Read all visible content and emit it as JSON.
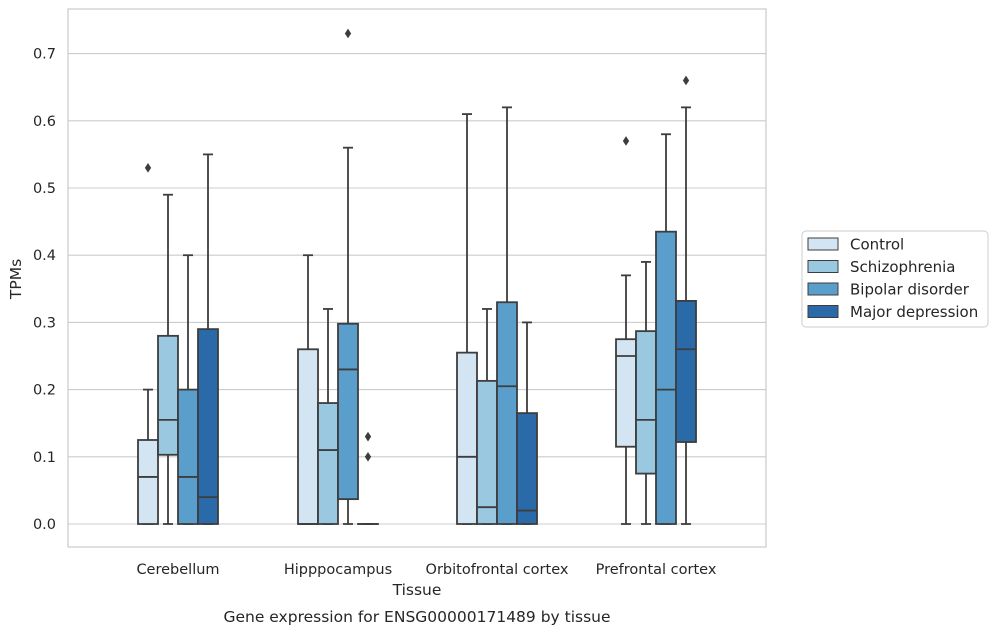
{
  "chart_data": {
    "type": "box",
    "xlabel": "Tissue",
    "ylabel": "TPMs",
    "caption": "Gene expression for ENSG00000171489 by tissue",
    "ylim": [
      -0.035,
      0.77
    ],
    "yticks": [
      0.0,
      0.1,
      0.2,
      0.3,
      0.4,
      0.5,
      0.6,
      0.7
    ],
    "ytick_labels": [
      "0.0",
      "0.1",
      "0.2",
      "0.3",
      "0.4",
      "0.5",
      "0.6",
      "0.7"
    ],
    "grid": "horizontal",
    "legend_position": "right",
    "categories": [
      "Cerebellum",
      "Hipppocampus",
      "Orbitofrontal cortex",
      "Prefrontal cortex"
    ],
    "series": [
      {
        "name": "Control",
        "color": "#d3e4f3",
        "boxes": [
          {
            "whisker_low": 0.0,
            "q1": 0.0,
            "median": 0.07,
            "q3": 0.125,
            "whisker_high": 0.2,
            "outliers": [
              0.53
            ]
          },
          {
            "whisker_low": 0.0,
            "q1": 0.0,
            "median": 0.0,
            "q3": 0.26,
            "whisker_high": 0.4,
            "outliers": []
          },
          {
            "whisker_low": 0.0,
            "q1": 0.0,
            "median": 0.1,
            "q3": 0.255,
            "whisker_high": 0.61,
            "outliers": []
          },
          {
            "whisker_low": 0.0,
            "q1": 0.115,
            "median": 0.25,
            "q3": 0.275,
            "whisker_high": 0.37,
            "outliers": [
              0.57
            ]
          }
        ]
      },
      {
        "name": "Schizophrenia",
        "color": "#9ac8e0",
        "boxes": [
          {
            "whisker_low": 0.0,
            "q1": 0.103,
            "median": 0.155,
            "q3": 0.28,
            "whisker_high": 0.49,
            "outliers": []
          },
          {
            "whisker_low": 0.0,
            "q1": 0.0,
            "median": 0.11,
            "q3": 0.18,
            "whisker_high": 0.32,
            "outliers": []
          },
          {
            "whisker_low": 0.0,
            "q1": 0.0,
            "median": 0.025,
            "q3": 0.213,
            "whisker_high": 0.32,
            "outliers": []
          },
          {
            "whisker_low": 0.0,
            "q1": 0.075,
            "median": 0.155,
            "q3": 0.287,
            "whisker_high": 0.39,
            "outliers": []
          }
        ]
      },
      {
        "name": "Bipolar disorder",
        "color": "#5a9fcc",
        "boxes": [
          {
            "whisker_low": 0.0,
            "q1": 0.0,
            "median": 0.07,
            "q3": 0.2,
            "whisker_high": 0.4,
            "outliers": []
          },
          {
            "whisker_low": 0.0,
            "q1": 0.037,
            "median": 0.23,
            "q3": 0.298,
            "whisker_high": 0.56,
            "outliers": [
              0.73
            ]
          },
          {
            "whisker_low": 0.0,
            "q1": 0.0,
            "median": 0.205,
            "q3": 0.33,
            "whisker_high": 0.62,
            "outliers": []
          },
          {
            "whisker_low": 0.0,
            "q1": 0.0,
            "median": 0.2,
            "q3": 0.435,
            "whisker_high": 0.58,
            "outliers": []
          }
        ]
      },
      {
        "name": "Major depression",
        "color": "#2b6aa8",
        "boxes": [
          {
            "whisker_low": 0.0,
            "q1": 0.0,
            "median": 0.04,
            "q3": 0.29,
            "whisker_high": 0.55,
            "outliers": []
          },
          {
            "whisker_low": 0.0,
            "q1": 0.0,
            "median": 0.0,
            "q3": 0.0,
            "whisker_high": 0.0,
            "outliers": [
              0.13,
              0.1
            ]
          },
          {
            "whisker_low": 0.0,
            "q1": 0.0,
            "median": 0.02,
            "q3": 0.165,
            "whisker_high": 0.3,
            "outliers": []
          },
          {
            "whisker_low": 0.0,
            "q1": 0.122,
            "median": 0.26,
            "q3": 0.332,
            "whisker_high": 0.62,
            "outliers": [
              0.66
            ]
          }
        ]
      }
    ]
  }
}
